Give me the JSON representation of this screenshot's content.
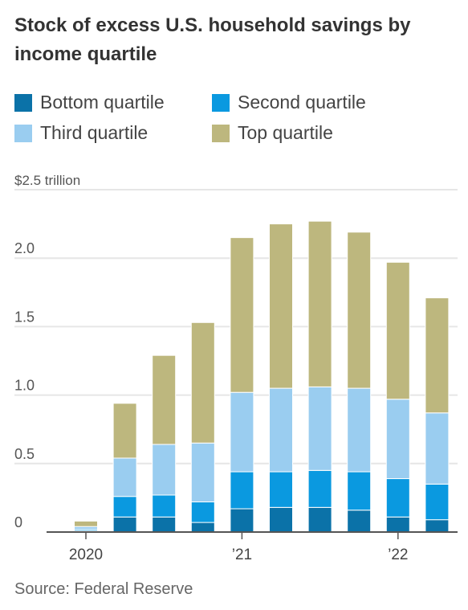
{
  "title": "Stock of excess U.S. household savings by income quartile",
  "source": "Source: Federal Reserve",
  "colors": {
    "bottom": "#0b72a8",
    "second": "#0a99e0",
    "third": "#9acdf0",
    "top": "#bdb77e",
    "grid": "#e6e6e6",
    "axis": "#555555"
  },
  "chart_data": {
    "type": "bar",
    "stacked": true,
    "y_unit_label": "$2.5 trillion",
    "ylim": [
      0,
      2.5
    ],
    "yticks": [
      {
        "value": 0,
        "label": "0"
      },
      {
        "value": 0.5,
        "label": "0.5"
      },
      {
        "value": 1.0,
        "label": "1.0"
      },
      {
        "value": 1.5,
        "label": "1.5"
      },
      {
        "value": 2.0,
        "label": "2.0"
      }
    ],
    "xticks": [
      {
        "index": 0,
        "label": "2020"
      },
      {
        "index": 4,
        "label": "’21"
      },
      {
        "index": 8,
        "label": "’22"
      }
    ],
    "grid": true,
    "legend_position": "top",
    "categories": [
      "2020 Q1",
      "2020 Q2",
      "2020 Q3",
      "2020 Q4",
      "2021 Q1",
      "2021 Q2",
      "2021 Q3",
      "2021 Q4",
      "2022 Q1",
      "2022 Q2"
    ],
    "series": [
      {
        "name": "Bottom quartile",
        "color_key": "bottom",
        "values": [
          0.01,
          0.11,
          0.11,
          0.07,
          0.17,
          0.18,
          0.18,
          0.16,
          0.11,
          0.09
        ]
      },
      {
        "name": "Second quartile",
        "color_key": "second",
        "values": [
          0.01,
          0.15,
          0.16,
          0.15,
          0.27,
          0.26,
          0.27,
          0.28,
          0.28,
          0.26
        ]
      },
      {
        "name": "Third quartile",
        "color_key": "third",
        "values": [
          0.02,
          0.28,
          0.37,
          0.43,
          0.58,
          0.61,
          0.61,
          0.61,
          0.58,
          0.52
        ]
      },
      {
        "name": "Top quartile",
        "color_key": "top",
        "values": [
          0.04,
          0.4,
          0.65,
          0.88,
          1.13,
          1.2,
          1.21,
          1.14,
          1.0,
          0.84
        ]
      }
    ]
  }
}
